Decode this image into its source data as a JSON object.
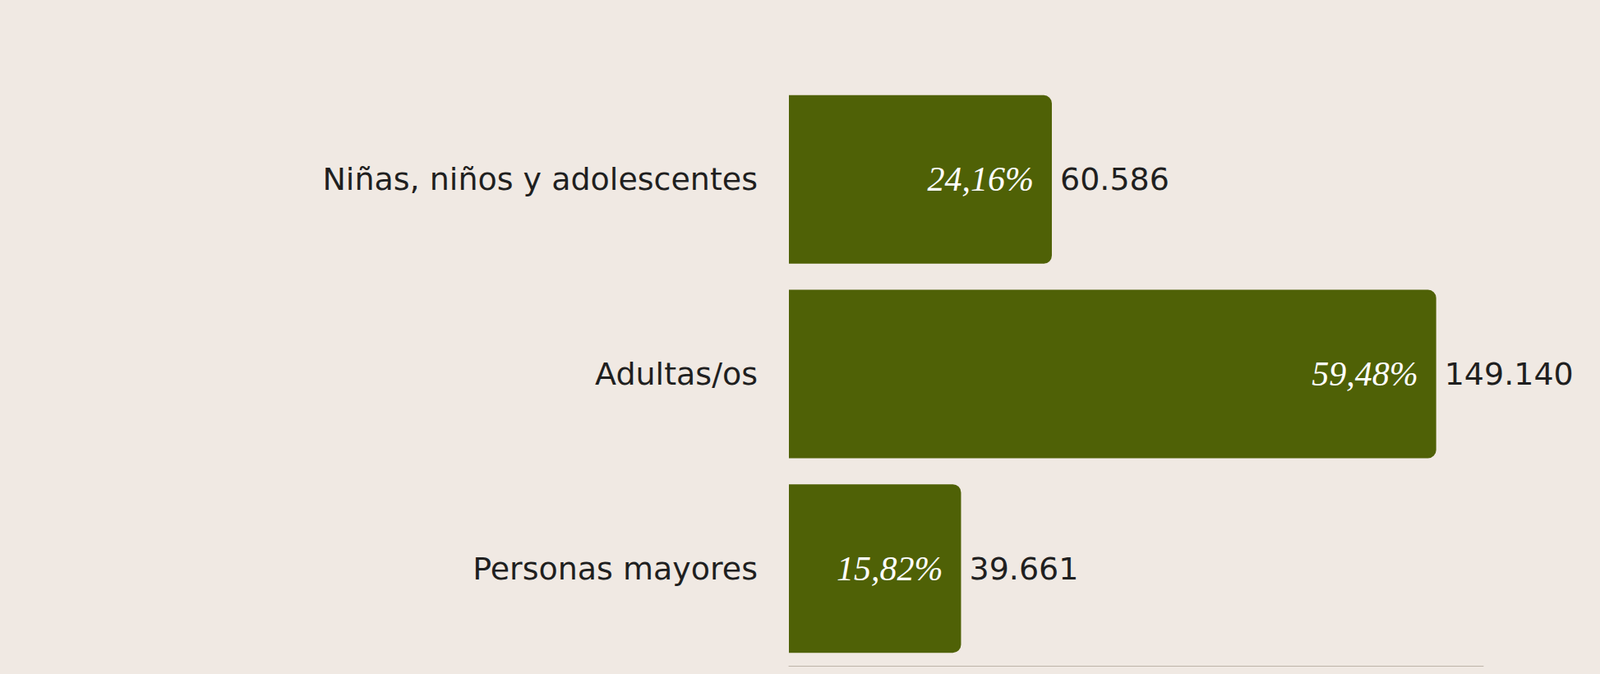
{
  "chart_data": {
    "type": "bar",
    "orientation": "horizontal",
    "categories": [
      "Niñas, niños y adolescentes",
      "Adultas/os",
      "Personas mayores"
    ],
    "values": [
      60586,
      149140,
      39661
    ],
    "value_labels": [
      "60.586",
      "149.140",
      "39.661"
    ],
    "shares": [
      24.16,
      59.48,
      15.82
    ],
    "share_labels": [
      "24,16%",
      "59,48%",
      "15,82%"
    ],
    "color": "#4f6106",
    "xlim": [
      0,
      160000
    ],
    "grid": false,
    "data_labels": true,
    "tick_labels": "y"
  }
}
